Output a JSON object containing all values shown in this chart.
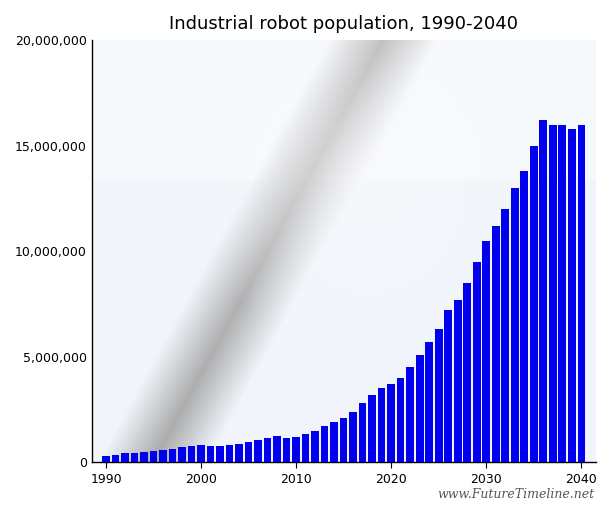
{
  "title": "Industrial robot population, 1990-2040",
  "years": [
    1990,
    1991,
    1992,
    1993,
    1994,
    1995,
    1996,
    1997,
    1998,
    1999,
    2000,
    2001,
    2002,
    2003,
    2004,
    2005,
    2006,
    2007,
    2008,
    2009,
    2010,
    2011,
    2012,
    2013,
    2014,
    2015,
    2016,
    2017,
    2018,
    2019,
    2020,
    2021,
    2022,
    2023,
    2024,
    2025,
    2026,
    2027,
    2028,
    2029,
    2030,
    2031,
    2032,
    2033,
    2034,
    2035,
    2036,
    2037,
    2038,
    2039,
    2040
  ],
  "values": [
    300000,
    370000,
    420000,
    450000,
    490000,
    540000,
    590000,
    650000,
    720000,
    770000,
    800000,
    780000,
    760000,
    800000,
    880000,
    970000,
    1050000,
    1150000,
    1250000,
    1150000,
    1200000,
    1350000,
    1500000,
    1700000,
    1900000,
    2100000,
    2400000,
    2800000,
    3200000,
    3500000,
    3700000,
    4000000,
    4500000,
    5100000,
    5700000,
    6300000,
    7200000,
    7700000,
    8500000,
    9500000,
    10500000,
    11200000,
    12000000,
    13000000,
    13800000,
    15000000,
    16200000,
    16000000,
    16000000,
    15800000,
    16000000
  ],
  "bar_color": "#0000ee",
  "background_color": "#ffffff",
  "ylim": [
    0,
    20000000
  ],
  "yticks": [
    0,
    5000000,
    10000000,
    15000000,
    20000000
  ],
  "ytick_labels": [
    "0",
    "5,000,000",
    "10,000,000",
    "15,000,000",
    "20,000,000"
  ],
  "xticks": [
    1990,
    2000,
    2010,
    2020,
    2030,
    2040
  ],
  "watermark": "www.FutureTimeline.net",
  "watermark_color": "#555555",
  "title_fontsize": 13,
  "axis_fontsize": 9,
  "bg_image_alpha": 0.45
}
